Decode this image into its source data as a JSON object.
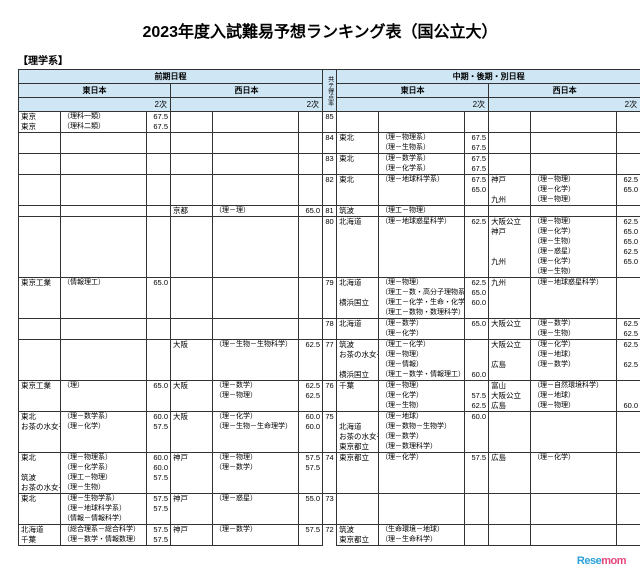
{
  "title": "2023年度入試難易予想ランキング表（国公立大）",
  "category_label": "【理学系】",
  "header": {
    "left_term": "前期日程",
    "right_term": "中期・後期・別日程",
    "east": "東日本",
    "west": "西日本",
    "sub": "2次",
    "kyotsu": "共テ得点率"
  },
  "bands": [
    {
      "ky": "85",
      "fe": [
        [
          "東京",
          "（理科一類）",
          "67.5"
        ],
        [
          "東京",
          "（理科二類）",
          "67.5"
        ]
      ],
      "fw": [],
      "re": [],
      "rw": []
    },
    {
      "ky": "84",
      "fe": [],
      "fw": [],
      "re": [
        [
          "東北",
          "（理－物理系）",
          "67.5"
        ],
        [
          "",
          "（理－生物系）",
          "67.5"
        ]
      ],
      "rw": []
    },
    {
      "ky": "83",
      "fe": [],
      "fw": [],
      "re": [
        [
          "東北",
          "（理－数学系）",
          "67.5"
        ],
        [
          "",
          "（理－化学系）",
          "67.5"
        ]
      ],
      "rw": []
    },
    {
      "ky": "82",
      "fe": [],
      "fw": [],
      "re": [
        [
          "東北",
          "（理－地球科学系）",
          "67.5"
        ],
        [
          "",
          "",
          "65.0"
        ]
      ],
      "rw": [
        [
          "神戸",
          "（理－物理）",
          "62.5"
        ],
        [
          "",
          "（理－化学）",
          "65.0"
        ],
        [
          "九州",
          "（理－物理）",
          ""
        ]
      ]
    },
    {
      "ky": "81",
      "fe": [],
      "fw": [
        [
          "京都",
          "（理－理）",
          "65.0"
        ]
      ],
      "re": [
        [
          "筑波",
          "（理工－物理）",
          ""
        ]
      ],
      "rw": []
    },
    {
      "ky": "80",
      "fe": [],
      "fw": [],
      "re": [
        [
          "北海道",
          "（理－地球惑星科学）",
          "62.5"
        ]
      ],
      "rw": [
        [
          "大阪公立",
          "（理－物理）",
          "62.5"
        ],
        [
          "神戸",
          "（理－化学）",
          "65.0"
        ],
        [
          "",
          "（理－生物）",
          "65.0"
        ],
        [
          "",
          "（理－惑星）",
          "62.5"
        ],
        [
          "九州",
          "（理－化学）",
          "65.0"
        ],
        [
          "",
          "（理－生物）",
          ""
        ]
      ]
    },
    {
      "ky": "79",
      "fe": [
        [
          "東京工業",
          "（情報理工）",
          "65.0"
        ]
      ],
      "fw": [],
      "re": [
        [
          "北海道",
          "（理－物理）",
          "62.5"
        ],
        [
          "",
          "（理工－数・高分子理物系）",
          "65.0"
        ],
        [
          "横浜国立",
          "（理工－化学・生命・化学応用）",
          "60.0"
        ],
        [
          "",
          "（理工－数物・数理科学）",
          ""
        ]
      ],
      "rw": [
        [
          "九州",
          "（理－地球惑星科学）",
          ""
        ]
      ]
    },
    {
      "ky": "78",
      "fe": [],
      "fw": [],
      "re": [
        [
          "北海道",
          "（理－数学）",
          "65.0"
        ],
        [
          "",
          "（理－化学）",
          ""
        ]
      ],
      "rw": [
        [
          "大阪公立",
          "（理－数学）",
          "62.5"
        ],
        [
          "",
          "（理－生物）",
          "62.5"
        ]
      ]
    },
    {
      "ky": "77",
      "fe": [],
      "fw": [
        [
          "大阪",
          "（理－生物－生物科学）",
          "62.5"
        ]
      ],
      "re": [
        [
          "筑波",
          "（理工－化学）",
          ""
        ],
        [
          "お茶の水女子",
          "（理－物理）",
          ""
        ],
        [
          "",
          "（理－情報）",
          ""
        ],
        [
          "横浜国立",
          "（理工－数学・情報理工）",
          "60.0"
        ]
      ],
      "rw": [
        [
          "大阪公立",
          "（理－化学）",
          "62.5"
        ],
        [
          "",
          "（理－地球）",
          ""
        ],
        [
          "広島",
          "（理－数学）",
          "62.5"
        ]
      ]
    },
    {
      "ky": "76",
      "fe": [
        [
          "東京工業",
          "（理）",
          "65.0"
        ]
      ],
      "fw": [
        [
          "大阪",
          "（理－数学）",
          "62.5"
        ],
        [
          "",
          "（理－物理）",
          "62.5"
        ]
      ],
      "re": [
        [
          "千葉",
          "（理－物理）",
          ""
        ],
        [
          "",
          "（理－化学）",
          "57.5"
        ],
        [
          "",
          "（理－生物）",
          "62.5"
        ]
      ],
      "rw": [
        [
          "富山",
          "（理－自然環境科学）",
          ""
        ],
        [
          "大阪公立",
          "（理－地球）",
          ""
        ],
        [
          "広島",
          "（理－物理）",
          "60.0"
        ]
      ]
    },
    {
      "ky": "75",
      "fe": [
        [
          "東北",
          "（理－数学系）",
          "60.0"
        ],
        [
          "お茶の水女子",
          "（理－化学）",
          "57.5"
        ]
      ],
      "fw": [
        [
          "大阪",
          "（理－化学）",
          "60.0"
        ],
        [
          "",
          "（理－生物－生命理学）",
          "60.0"
        ]
      ],
      "re": [
        [
          "",
          "（理－地球）",
          "60.0"
        ],
        [
          "北海道",
          "（理－数物－生物学）",
          ""
        ],
        [
          "お茶の水女子",
          "（理－数学）",
          ""
        ],
        [
          "東京都立",
          "（理－数理科学）",
          ""
        ]
      ],
      "rw": []
    },
    {
      "ky": "74",
      "fe": [
        [
          "東北",
          "（理－物理系）",
          "60.0"
        ],
        [
          "",
          "（理－化学系）",
          "60.0"
        ],
        [
          "筑波",
          "（理工－物理）",
          "57.5"
        ],
        [
          "お茶の水女子",
          "（理－生物）",
          ""
        ]
      ],
      "fw": [
        [
          "神戸",
          "（理－物理）",
          "57.5"
        ],
        [
          "",
          "（理－数学）",
          "57.5"
        ]
      ],
      "re": [
        [
          "東京都立",
          "（理－化学）",
          "57.5"
        ]
      ],
      "rw": [
        [
          "広島",
          "（理－化学）",
          ""
        ]
      ]
    },
    {
      "ky": "73",
      "fe": [
        [
          "東北",
          "（理－生物学系）",
          "57.5"
        ],
        [
          "",
          "（理－地球科学系）",
          "57.5"
        ],
        [
          "",
          "（情報－情報科学）",
          ""
        ]
      ],
      "fw": [
        [
          "神戸",
          "（理－惑星）",
          "55.0"
        ]
      ],
      "re": [],
      "rw": []
    },
    {
      "ky": "72",
      "fe": [
        [
          "北海道",
          "（総合理系－総合科学）",
          "57.5"
        ],
        [
          "千葉",
          "（理－数学・情報数理）",
          "57.5"
        ]
      ],
      "fw": [
        [
          "神戸",
          "（理－数学）",
          "57.5"
        ]
      ],
      "re": [
        [
          "筑波",
          "（生命環境－地球）",
          ""
        ],
        [
          "東京都立",
          "（理－生命科学）",
          ""
        ]
      ],
      "rw": []
    }
  ],
  "watermark": {
    "re": "Rese",
    "mom": "mom"
  }
}
